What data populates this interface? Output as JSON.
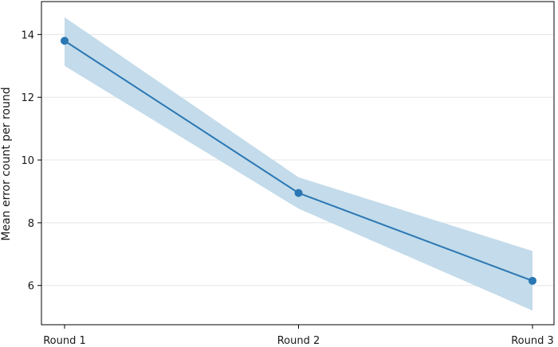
{
  "chart_data": {
    "type": "line",
    "title": "",
    "xlabel": "",
    "ylabel": "Mean error count per round",
    "categories": [
      "Round 1",
      "Round 2",
      "Round 3"
    ],
    "series": [
      {
        "values": [
          13.8,
          8.95,
          6.15
        ],
        "lower": [
          13.0,
          8.45,
          5.2
        ],
        "upper": [
          14.55,
          9.45,
          7.1
        ]
      }
    ],
    "ylim": [
      4.75,
      15.05
    ],
    "yticks": [
      6,
      8,
      10,
      12,
      14
    ],
    "grid": "horizontal",
    "colors": {
      "line": "#2a77b4",
      "band": "#c3dbea",
      "grid": "#e5e5e5"
    }
  }
}
